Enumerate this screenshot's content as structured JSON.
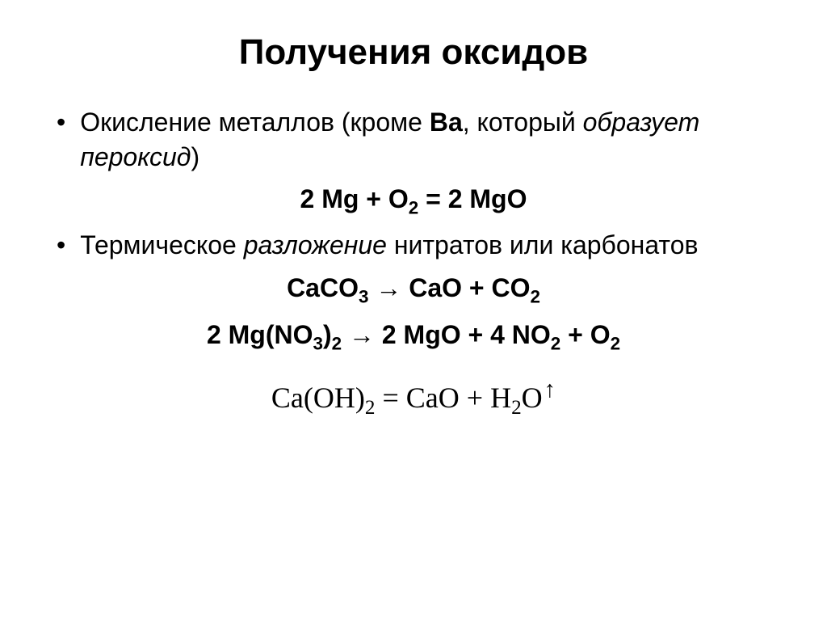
{
  "title": "Получения оксидов",
  "bullets": [
    {
      "prefix": "Окисление металлов (кроме ",
      "bold": "Ва",
      "mid": ", который ",
      "italic": "образует пероксид",
      "suffix": ")"
    },
    {
      "plain_start": "Термическое ",
      "italic": "разложение",
      "plain_end": " нитратов или карбонатов"
    }
  ],
  "eq1": {
    "lhs": "2 Mg + O",
    "sub1": "2",
    "mid": " = 2 MgO"
  },
  "eq2": {
    "a": "CaCO",
    "a_sub": "3",
    "arrow": " → ",
    "b": "CaO + CO",
    "b_sub": "2"
  },
  "eq3": {
    "a": "2 Mg(NO",
    "a_sub": "3",
    "b": ")",
    "b_sub": "2",
    "arrow": " → ",
    "c": "2 MgO + 4 NO",
    "c_sub": "2",
    "d": " + O",
    "d_sub": "2"
  },
  "eq4": {
    "a": "Ca(OH)",
    "a_sub": "2",
    "eq": " = ",
    "b": "CaO + H",
    "b_sub": "2",
    "c": "O",
    "up": "↑"
  }
}
